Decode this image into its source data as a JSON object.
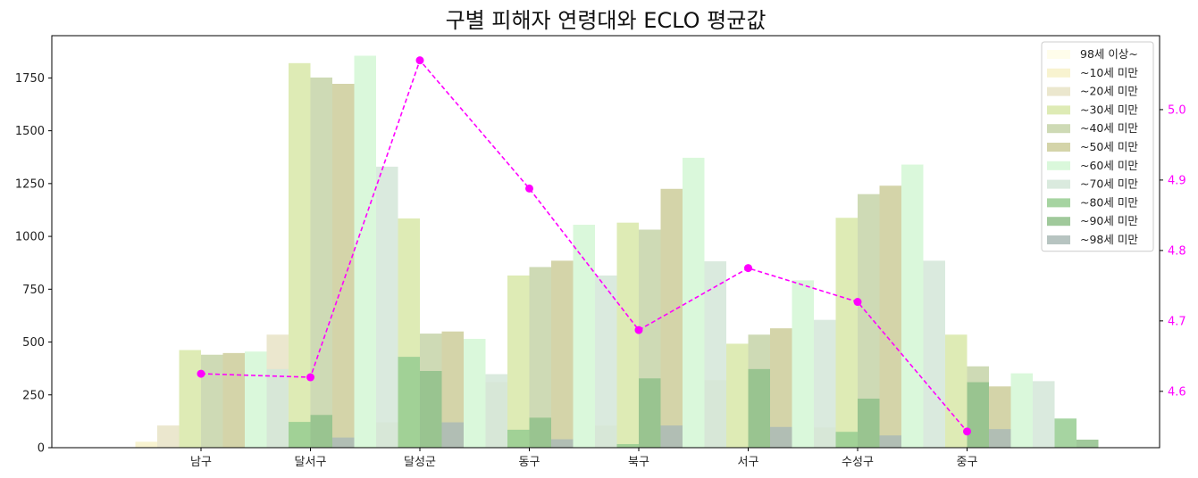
{
  "chart_data": {
    "type": "bar",
    "title": "구별 피해자 연령대와 ECLO 평균값",
    "xlabel": "",
    "ylabel": "",
    "categories": [
      "남구",
      "달서구",
      "달성군",
      "동구",
      "북구",
      "서구",
      "수성구",
      "중구"
    ],
    "ylim": [
      0,
      1950
    ],
    "yticks": [
      0,
      250,
      500,
      750,
      1000,
      1250,
      1500,
      1750
    ],
    "y2lim": [
      4.52,
      5.105
    ],
    "y2ticks": [
      4.6,
      4.7,
      4.8,
      4.9,
      5.0
    ],
    "y2tick_labels": [
      "4.6",
      "4.7",
      "4.8",
      "4.9",
      "5.0"
    ],
    "legend_position": "top-right",
    "grid": false,
    "series": [
      {
        "name": "98세 이상~",
        "color": "#fffde7",
        "values": [
          0,
          0,
          0,
          0,
          0,
          0,
          0,
          0
        ]
      },
      {
        "name": "~10세 미만",
        "color": "#f7f1c8",
        "values": [
          28,
          0,
          5,
          2,
          0,
          2,
          1,
          0
        ]
      },
      {
        "name": "~20세 미만",
        "color": "#e8e3c5",
        "values": [
          105,
          535,
          120,
          310,
          105,
          320,
          95,
          0
        ]
      },
      {
        "name": "~30세 미만",
        "color": "#d8e8a8",
        "values": [
          462,
          1820,
          1085,
          815,
          1065,
          492,
          1088,
          535
        ]
      },
      {
        "name": "~40세 미만",
        "color": "#c5d4a8",
        "values": [
          440,
          1752,
          540,
          855,
          1032,
          535,
          1200,
          385
        ]
      },
      {
        "name": "~50세 미만",
        "color": "#cdcc9a",
        "values": [
          448,
          1722,
          550,
          885,
          1225,
          565,
          1240,
          290
        ]
      },
      {
        "name": "~60세 미만",
        "color": "#d3f7d5",
        "values": [
          455,
          1855,
          515,
          1055,
          1372,
          792,
          1340,
          352
        ]
      },
      {
        "name": "~70세 미만",
        "color": "#d3e6d8",
        "values": [
          372,
          1330,
          348,
          815,
          882,
          605,
          885,
          315
        ]
      },
      {
        "name": "~80세 미만",
        "color": "#96cc91",
        "values": [
          122,
          430,
          85,
          17,
          0,
          75,
          0,
          138
        ]
      },
      {
        "name": "~90세 미만",
        "color": "#8fbf8a",
        "values": [
          155,
          363,
          142,
          328,
          372,
          232,
          310,
          38
        ]
      },
      {
        "name": "~98세 미만",
        "color": "#aabab6",
        "values": [
          48,
          120,
          40,
          105,
          98,
          58,
          88,
          2
        ]
      }
    ],
    "line_series": {
      "name": "ECLO 평균값",
      "axis": "right",
      "color": "#ff00ff",
      "values": [
        4.625,
        4.62,
        5.07,
        4.888,
        4.687,
        4.775,
        4.727,
        4.543
      ]
    }
  }
}
